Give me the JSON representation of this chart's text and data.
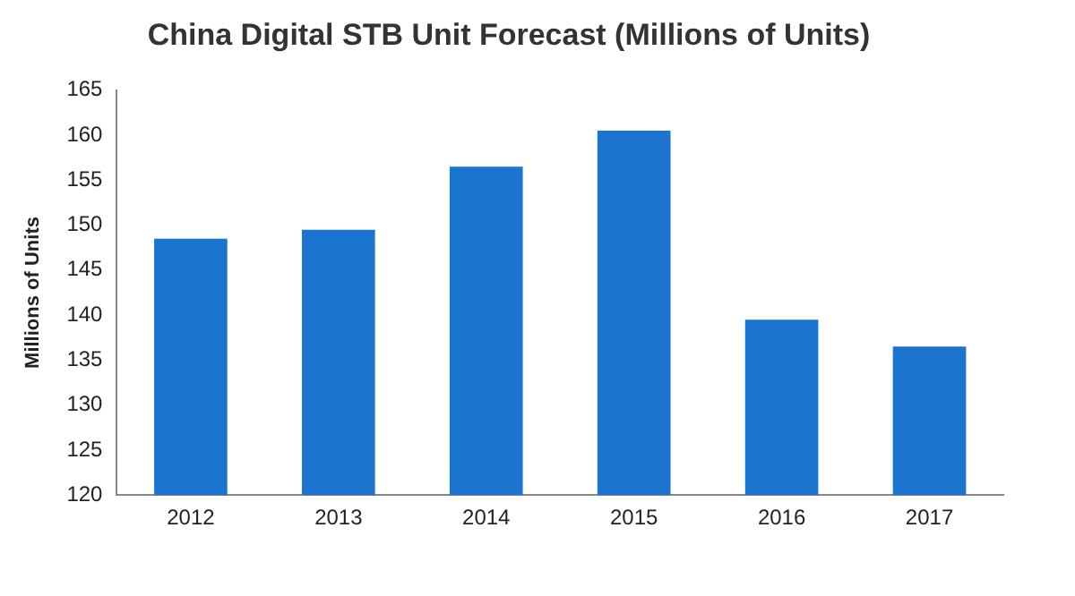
{
  "chart_data": {
    "type": "bar",
    "title": "China Digital STB Unit Forecast (Millions of Units)",
    "ylabel": "Millions of Units",
    "categories": [
      "2012",
      "2013",
      "2014",
      "2015",
      "2016",
      "2017"
    ],
    "values": [
      148.5,
      149.5,
      156.5,
      160.5,
      139.5,
      136.5
    ],
    "color": "#1b75d0",
    "ylim": [
      120,
      165
    ],
    "yticks": [
      120,
      125,
      130,
      135,
      140,
      145,
      150,
      155,
      160,
      165
    ],
    "grid": false,
    "legend": false
  }
}
